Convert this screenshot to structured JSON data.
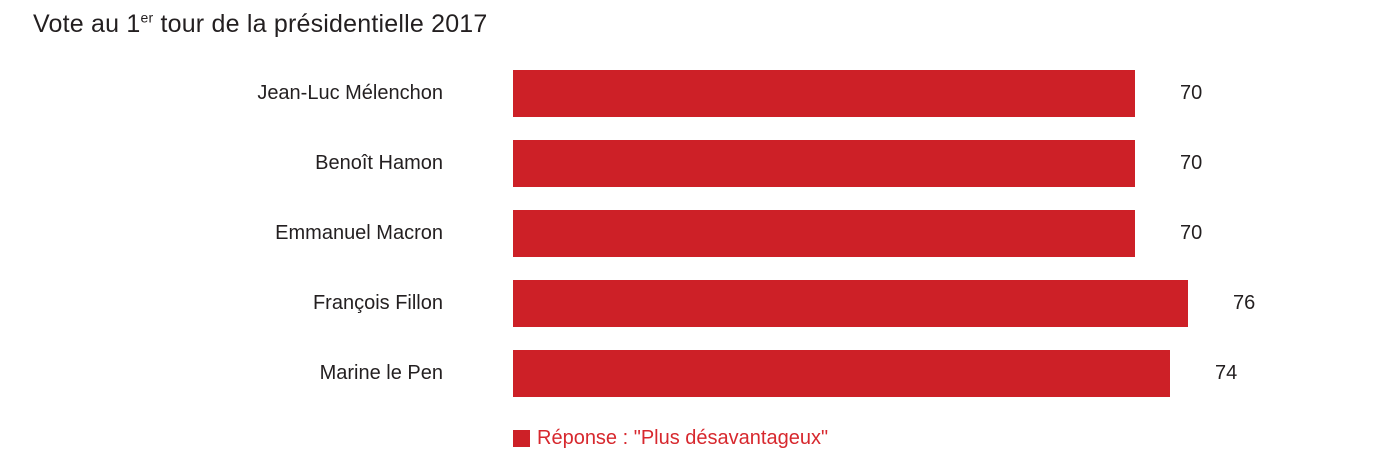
{
  "title": {
    "prefix": "Vote au 1",
    "superscript": "er",
    "suffix": " tour de la présidentielle 2017"
  },
  "chart_data": {
    "type": "bar",
    "orientation": "horizontal",
    "title": "Vote au 1er tour de la présidentielle 2017",
    "categories": [
      "Jean-Luc Mélenchon",
      "Benoît Hamon",
      "Emmanuel Macron",
      "François Fillon",
      "Marine le Pen"
    ],
    "values": [
      70,
      70,
      70,
      76,
      74
    ],
    "series": [
      {
        "name": "Réponse : \"Plus désavantageux\"",
        "values": [
          70,
          70,
          70,
          76,
          74
        ]
      }
    ],
    "xlabel": "",
    "ylabel": "",
    "xlim": [
      0,
      100
    ],
    "grid": false,
    "data_labels": true,
    "legend": {
      "label": "Réponse : \"Plus désavantageux\"",
      "position": "bottom"
    }
  },
  "colors": {
    "bar": "#CD2027",
    "legend_swatch": "#CD2027",
    "legend_text": "#D7282E",
    "title_text": "#231F20",
    "label_text": "#231F20",
    "value_text": "#231F20",
    "background": "#FFFFFF"
  }
}
